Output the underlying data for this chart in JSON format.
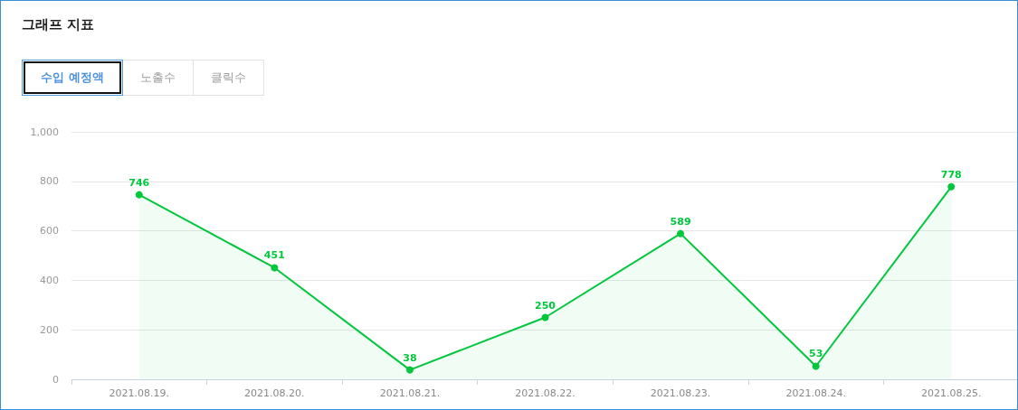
{
  "chart_data": {
    "type": "area",
    "title": "그래프 지표",
    "annotations": [
      "수입 예정액",
      "노출수",
      "클릭수"
    ],
    "categories": [
      "2021.08.19.",
      "2021.08.20.",
      "2021.08.21.",
      "2021.08.22.",
      "2021.08.23.",
      "2021.08.24.",
      "2021.08.25."
    ],
    "values": [
      746,
      451,
      38,
      250,
      589,
      53,
      778
    ],
    "color": "#00c73c",
    "ylim": [
      0,
      1000
    ],
    "yticks": [
      0,
      200,
      400,
      600,
      800,
      {
        "value": 1000,
        "label": "1,000"
      }
    ],
    "grid": "y",
    "marker": "circle",
    "line_style": "solid",
    "data_labels": true
  }
}
